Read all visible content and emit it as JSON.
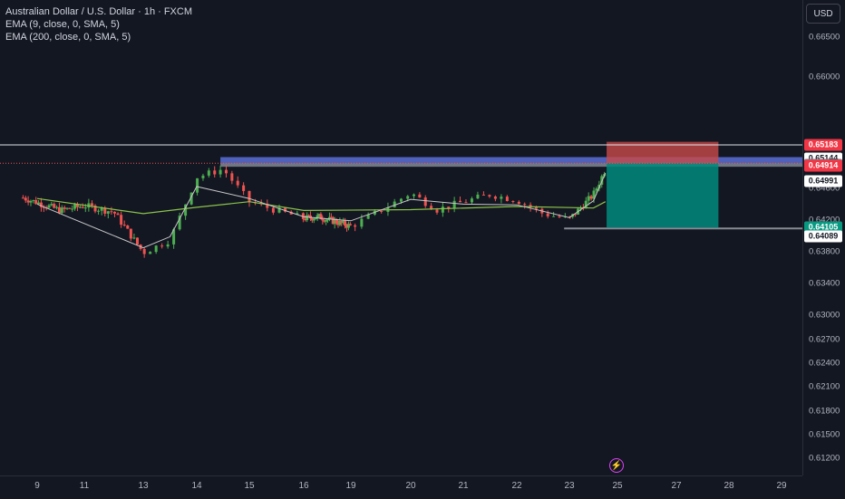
{
  "legend": {
    "symbol": "Australian Dollar / U.S. Dollar · 1h · FXCM",
    "ema9": "EMA (9, close, 0, SMA, 5)",
    "ema200": "EMA (200, close, 0, SMA, 5)"
  },
  "currency_button": "USD",
  "price_ticks": [
    "0.66500",
    "0.66000",
    "0.64600",
    "0.64200",
    "0.63800",
    "0.63400",
    "0.63000",
    "0.62700",
    "0.62400",
    "0.62100",
    "0.61800",
    "0.61500",
    "0.61200"
  ],
  "time_labels": [
    "9",
    "11",
    "13",
    "14",
    "15",
    "16",
    "19",
    "20",
    "21",
    "22",
    "23",
    "25",
    "27",
    "28",
    "29"
  ],
  "price_labels": {
    "stop": "0.65183",
    "l1": "0.65144",
    "l2": "0.64991",
    "l3": "0.64915",
    "entry": "0.64914",
    "target": "0.64105",
    "l4": "0.64089"
  },
  "colors": {
    "up": "#4caf50",
    "down": "#ef5350",
    "ema9": "#c8c8c8",
    "ema200": "#8bc34a",
    "stop_zone": "#c84a4a",
    "target_zone": "#00897b",
    "range_zone": "#5b6fd6",
    "stop_label": "#f23645",
    "target_label": "#089981"
  },
  "icons": {
    "alert": "lightning-icon"
  },
  "alert_glyph": "⚡",
  "chart_data": {
    "type": "candlestick",
    "ylim": [
      0.6101,
      0.6683
    ],
    "x_tick_labels": [
      "9",
      "11",
      "13",
      "14",
      "15",
      "16",
      "19",
      "20",
      "21",
      "22",
      "23",
      "25",
      "27",
      "28",
      "29"
    ],
    "close_path": [
      [
        "9",
        0.6442
      ],
      [
        "10",
        0.6432
      ],
      [
        "11",
        0.6438
      ],
      [
        "12",
        0.643
      ],
      [
        "13",
        0.6379
      ],
      [
        "13.5",
        0.6395
      ],
      [
        "14",
        0.6474
      ],
      [
        "14.5",
        0.6484
      ],
      [
        "15",
        0.6443
      ],
      [
        "15.5",
        0.6432
      ],
      [
        "16",
        0.6422
      ],
      [
        "17",
        0.6424
      ],
      [
        "19",
        0.6412
      ],
      [
        "19.5",
        0.6432
      ],
      [
        "20",
        0.6454
      ],
      [
        "20.5",
        0.6433
      ],
      [
        "21",
        0.6443
      ],
      [
        "21.5",
        0.6452
      ],
      [
        "22",
        0.6445
      ],
      [
        "22.5",
        0.6428
      ],
      [
        "23",
        0.6421
      ],
      [
        "24",
        0.6452
      ],
      [
        "24.5",
        0.6484
      ]
    ],
    "ema9_path": [
      [
        "9",
        0.644
      ],
      [
        "13",
        0.6385
      ],
      [
        "13.5",
        0.6399
      ],
      [
        "14",
        0.6462
      ],
      [
        "15",
        0.6447
      ],
      [
        "16",
        0.6424
      ],
      [
        "19",
        0.6419
      ],
      [
        "20",
        0.6446
      ],
      [
        "21",
        0.644
      ],
      [
        "22",
        0.6439
      ],
      [
        "23",
        0.6423
      ],
      [
        "24",
        0.6444
      ],
      [
        "24.5",
        0.6479
      ]
    ],
    "ema200_path": [
      [
        "9",
        0.6447
      ],
      [
        "13",
        0.6428
      ],
      [
        "14",
        0.6436
      ],
      [
        "15",
        0.6443
      ],
      [
        "16",
        0.6432
      ],
      [
        "20",
        0.6433
      ],
      [
        "22",
        0.6437
      ],
      [
        "24",
        0.6435
      ],
      [
        "24.5",
        0.6443
      ]
    ],
    "levels": {
      "stop": 0.65183,
      "l1": 0.65144,
      "l2": 0.64991,
      "l3": 0.64915,
      "entry": 0.64914,
      "target": 0.64105,
      "l4": 0.64089
    },
    "grid": false
  }
}
